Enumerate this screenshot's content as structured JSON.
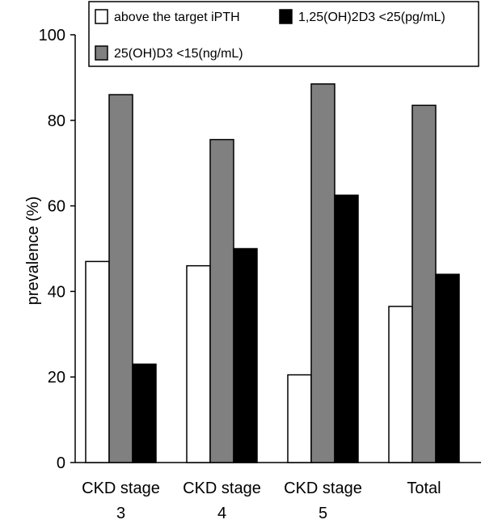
{
  "chart_data": {
    "type": "bar",
    "ylabel": "prevalence (%)",
    "ylim": [
      0,
      100
    ],
    "yticks": [
      0,
      20,
      40,
      60,
      80,
      100
    ],
    "categories": [
      [
        "CKD stage",
        "3"
      ],
      [
        "CKD stage",
        "4"
      ],
      [
        "CKD stage",
        "5"
      ],
      [
        "Total"
      ]
    ],
    "series": [
      {
        "name": "above the target iPTH",
        "color": "#ffffff",
        "values": [
          47,
          46,
          20.5,
          36.5
        ]
      },
      {
        "name": "25(OH)D3 <15(ng/mL)",
        "color": "#808080",
        "values": [
          86,
          75.5,
          88.5,
          83.5
        ]
      },
      {
        "name": "1,25(OH)2D3 <25(pg/mL)",
        "color": "#000000",
        "values": [
          23,
          50,
          62.5,
          44
        ]
      }
    ],
    "legend": "top"
  }
}
